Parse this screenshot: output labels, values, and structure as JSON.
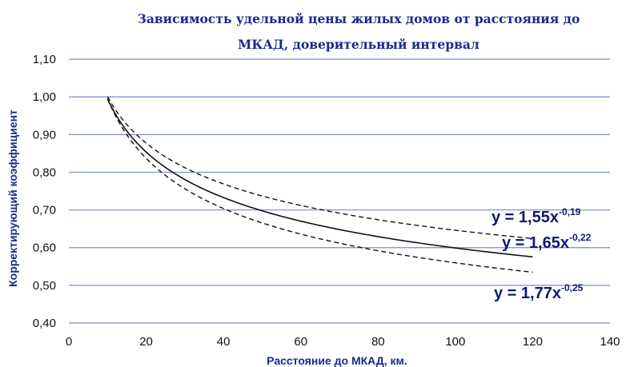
{
  "chart_data": {
    "type": "line",
    "title_lines": [
      "Зависимость удельной цены жилых домов от расстояния до",
      "МКАД, доверительный интервал"
    ],
    "xlabel": "Расстояние до МКАД, км.",
    "ylabel": "Корректирующий  коэффициент",
    "xlim": [
      0,
      140
    ],
    "ylim": [
      0.4,
      1.1
    ],
    "x_ticks": [
      "0",
      "20",
      "40",
      "60",
      "80",
      "100",
      "120",
      "140"
    ],
    "y_ticks": [
      "0,40",
      "0,50",
      "0,60",
      "0,70",
      "0,80",
      "0,90",
      "1,00",
      "1,10"
    ],
    "grid": "horizontal",
    "x_range": [
      10,
      120
    ],
    "series": [
      {
        "name": "upper",
        "a": 1.55,
        "b": -0.19,
        "style": "dashed",
        "color": "#111111",
        "eq": {
          "prefix": "y = 1,55x",
          "exp": "-0,19"
        }
      },
      {
        "name": "central",
        "a": 1.65,
        "b": -0.22,
        "style": "solid",
        "color": "#111111",
        "eq": {
          "prefix": "y = 1,65x",
          "exp": "-0,22"
        }
      },
      {
        "name": "lower",
        "a": 1.77,
        "b": -0.25,
        "style": "dashed",
        "color": "#111111",
        "eq": {
          "prefix": "y = 1,77x",
          "exp": "-0,25"
        }
      }
    ],
    "colors": {
      "grid": "#7b88c9",
      "title": "#1a2a8c",
      "equation": "#0e1a72"
    }
  }
}
